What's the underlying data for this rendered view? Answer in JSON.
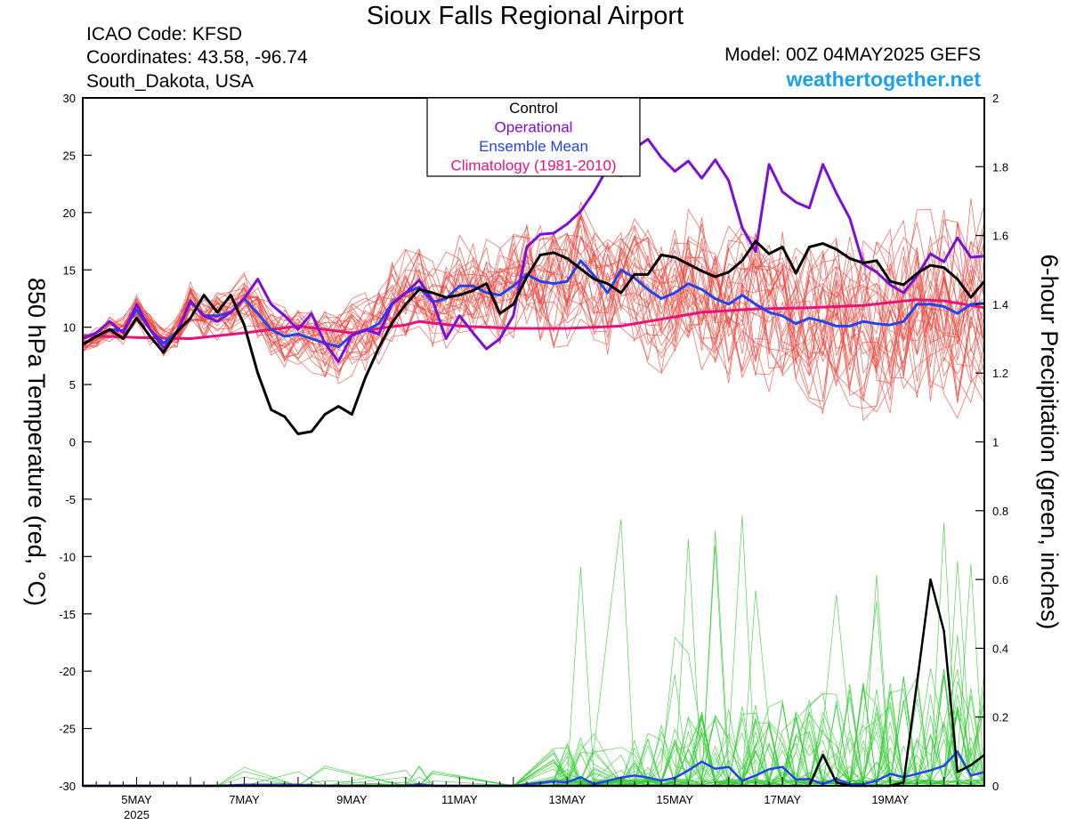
{
  "header": {
    "title": "Sioux Falls Regional Airport",
    "icao": "ICAO Code: KFSD",
    "coords": "Coordinates: 43.58, -96.74",
    "region": "South_Dakota, USA",
    "model": "Model: 00Z 04MAY2025 GEFS",
    "site": "weathertogether.net"
  },
  "chart_data": {
    "type": "line",
    "x_unit": "forecast hours from 00Z 04MAY2025 (6-hourly)",
    "x_tick_labels": [
      "5MAY",
      "7MAY",
      "9MAY",
      "11MAY",
      "13MAY",
      "15MAY",
      "17MAY",
      "19MAY"
    ],
    "x_year_label": "2025",
    "y_left": {
      "label": "850 hPa Temperature (red, °C)",
      "range": [
        -30,
        30
      ],
      "ticks": [
        "30",
        "25",
        "20",
        "15",
        "10",
        "5",
        "0",
        "-5",
        "-10",
        "-15",
        "-20",
        "-25",
        "-30"
      ]
    },
    "y_right": {
      "label": "6-hour Precipitation (green, inches)",
      "range": [
        0,
        2
      ],
      "ticks": [
        "2",
        "1.8",
        "1.6",
        "1.4",
        "1.2",
        "1",
        "0.8",
        "0.6",
        "0.4",
        "0.2",
        "0"
      ]
    },
    "legend": [
      {
        "label": "Control",
        "color": "#000000"
      },
      {
        "label": "Operational",
        "color": "#7a10d8"
      },
      {
        "label": "Ensemble Mean",
        "color": "#2244ee"
      },
      {
        "label": "Climatology (1981-2010)",
        "color": "#e8137a"
      }
    ],
    "legend_position": "top-center",
    "colors": {
      "members_temp": "#f0443a",
      "members_precip": "#33cc33",
      "axes": "#000000"
    },
    "series": [
      {
        "name": "Control",
        "axis": "left",
        "points": [
          [
            0,
            8.5
          ],
          [
            6,
            9.2
          ],
          [
            12,
            9.8
          ],
          [
            18,
            9.0
          ],
          [
            24,
            10.8
          ],
          [
            30,
            9.2
          ],
          [
            36,
            7.8
          ],
          [
            42,
            9.6
          ],
          [
            48,
            10.8
          ],
          [
            54,
            12.8
          ],
          [
            60,
            11.3
          ],
          [
            66,
            12.8
          ],
          [
            72,
            10.2
          ],
          [
            78,
            6.0
          ],
          [
            84,
            2.8
          ],
          [
            90,
            2.2
          ],
          [
            96,
            0.7
          ],
          [
            102,
            0.9
          ],
          [
            108,
            2.4
          ],
          [
            114,
            3.1
          ],
          [
            120,
            2.4
          ],
          [
            126,
            5.6
          ],
          [
            132,
            8.2
          ],
          [
            138,
            10.4
          ],
          [
            144,
            12.0
          ],
          [
            150,
            13.3
          ],
          [
            156,
            13.0
          ],
          [
            162,
            12.6
          ],
          [
            168,
            12.8
          ],
          [
            174,
            13.2
          ],
          [
            180,
            13.8
          ],
          [
            186,
            11.2
          ],
          [
            192,
            12.0
          ],
          [
            198,
            14.4
          ],
          [
            204,
            16.3
          ],
          [
            210,
            16.5
          ],
          [
            216,
            16.0
          ],
          [
            222,
            15.1
          ],
          [
            228,
            14.2
          ],
          [
            234,
            13.8
          ],
          [
            240,
            13.0
          ],
          [
            246,
            14.6
          ],
          [
            252,
            14.6
          ],
          [
            258,
            16.3
          ],
          [
            264,
            16.1
          ],
          [
            270,
            15.5
          ],
          [
            276,
            14.9
          ],
          [
            282,
            14.4
          ],
          [
            288,
            14.8
          ],
          [
            294,
            15.8
          ],
          [
            300,
            17.5
          ],
          [
            306,
            16.4
          ],
          [
            312,
            17.0
          ],
          [
            318,
            14.7
          ],
          [
            324,
            17.0
          ],
          [
            330,
            17.3
          ],
          [
            336,
            16.8
          ],
          [
            342,
            16.0
          ],
          [
            348,
            15.6
          ],
          [
            354,
            15.8
          ],
          [
            360,
            14.0
          ],
          [
            366,
            13.7
          ],
          [
            372,
            14.7
          ],
          [
            378,
            15.4
          ],
          [
            384,
            15.2
          ],
          [
            390,
            14.2
          ],
          [
            396,
            12.6
          ],
          [
            402,
            14.0
          ]
        ]
      },
      {
        "name": "Operational",
        "axis": "left",
        "points": [
          [
            0,
            9.0
          ],
          [
            6,
            9.5
          ],
          [
            12,
            10.5
          ],
          [
            18,
            9.5
          ],
          [
            24,
            12.0
          ],
          [
            30,
            9.8
          ],
          [
            36,
            8.2
          ],
          [
            42,
            9.5
          ],
          [
            48,
            12.3
          ],
          [
            54,
            11.0
          ],
          [
            60,
            10.5
          ],
          [
            66,
            11.3
          ],
          [
            72,
            12.5
          ],
          [
            78,
            14.2
          ],
          [
            84,
            12.0
          ],
          [
            90,
            11.0
          ],
          [
            96,
            9.8
          ],
          [
            102,
            11.2
          ],
          [
            108,
            8.6
          ],
          [
            114,
            7.0
          ],
          [
            120,
            9.3
          ],
          [
            126,
            9.8
          ],
          [
            132,
            9.4
          ],
          [
            138,
            12.0
          ],
          [
            144,
            13.0
          ],
          [
            150,
            14.1
          ],
          [
            156,
            12.3
          ],
          [
            162,
            9.0
          ],
          [
            168,
            11.0
          ],
          [
            174,
            9.5
          ],
          [
            180,
            8.1
          ],
          [
            186,
            9.0
          ],
          [
            192,
            11.0
          ],
          [
            198,
            17.0
          ],
          [
            204,
            18.1
          ],
          [
            210,
            18.2
          ],
          [
            216,
            19.0
          ],
          [
            222,
            20.1
          ],
          [
            228,
            21.8
          ],
          [
            234,
            23.9
          ],
          [
            240,
            23.2
          ],
          [
            246,
            25.6
          ],
          [
            252,
            26.4
          ],
          [
            258,
            24.8
          ],
          [
            264,
            23.6
          ],
          [
            270,
            24.5
          ],
          [
            276,
            23.0
          ],
          [
            282,
            24.6
          ],
          [
            288,
            22.8
          ],
          [
            294,
            18.7
          ],
          [
            300,
            16.6
          ],
          [
            306,
            24.2
          ],
          [
            312,
            21.8
          ],
          [
            318,
            20.9
          ],
          [
            324,
            20.4
          ],
          [
            330,
            24.2
          ],
          [
            336,
            21.7
          ],
          [
            342,
            19.5
          ],
          [
            348,
            15.5
          ],
          [
            354,
            14.8
          ],
          [
            360,
            13.7
          ],
          [
            366,
            13.0
          ],
          [
            372,
            14.5
          ],
          [
            378,
            16.4
          ],
          [
            384,
            15.7
          ],
          [
            390,
            17.8
          ],
          [
            396,
            16.1
          ],
          [
            402,
            16.2
          ]
        ]
      },
      {
        "name": "Ensemble Mean",
        "axis": "left",
        "points": [
          [
            0,
            8.5
          ],
          [
            6,
            9.2
          ],
          [
            12,
            9.8
          ],
          [
            18,
            9.7
          ],
          [
            24,
            11.5
          ],
          [
            30,
            9.8
          ],
          [
            36,
            8.6
          ],
          [
            42,
            9.6
          ],
          [
            48,
            12.2
          ],
          [
            54,
            11.0
          ],
          [
            60,
            11.0
          ],
          [
            66,
            11.3
          ],
          [
            72,
            12.5
          ],
          [
            78,
            11.2
          ],
          [
            84,
            9.8
          ],
          [
            90,
            9.2
          ],
          [
            96,
            9.4
          ],
          [
            102,
            9.0
          ],
          [
            108,
            8.6
          ],
          [
            114,
            8.3
          ],
          [
            120,
            9.3
          ],
          [
            126,
            9.7
          ],
          [
            132,
            10.3
          ],
          [
            138,
            12.1
          ],
          [
            144,
            13.0
          ],
          [
            150,
            13.5
          ],
          [
            156,
            12.2
          ],
          [
            162,
            12.5
          ],
          [
            168,
            13.6
          ],
          [
            174,
            13.6
          ],
          [
            180,
            13.0
          ],
          [
            186,
            12.8
          ],
          [
            192,
            13.6
          ],
          [
            198,
            14.6
          ],
          [
            204,
            14.0
          ],
          [
            210,
            13.8
          ],
          [
            216,
            14.0
          ],
          [
            222,
            15.8
          ],
          [
            228,
            14.5
          ],
          [
            234,
            13.0
          ],
          [
            240,
            15.0
          ],
          [
            246,
            14.3
          ],
          [
            252,
            13.3
          ],
          [
            258,
            12.5
          ],
          [
            264,
            13.0
          ],
          [
            270,
            13.8
          ],
          [
            276,
            13.3
          ],
          [
            282,
            12.5
          ],
          [
            288,
            12.0
          ],
          [
            294,
            12.8
          ],
          [
            300,
            12.0
          ],
          [
            306,
            11.3
          ],
          [
            312,
            11.0
          ],
          [
            318,
            10.3
          ],
          [
            324,
            10.8
          ],
          [
            330,
            10.5
          ],
          [
            336,
            10.1
          ],
          [
            342,
            10.1
          ],
          [
            348,
            10.5
          ],
          [
            354,
            10.3
          ],
          [
            360,
            10.2
          ],
          [
            366,
            10.5
          ],
          [
            372,
            12.0
          ],
          [
            378,
            12.0
          ],
          [
            384,
            11.8
          ],
          [
            390,
            11.2
          ],
          [
            396,
            12.0
          ],
          [
            402,
            12.1
          ]
        ]
      },
      {
        "name": "Climatology (1981-2010)",
        "axis": "left",
        "points": [
          [
            0,
            9.3
          ],
          [
            24,
            9.1
          ],
          [
            48,
            9.0
          ],
          [
            72,
            9.5
          ],
          [
            96,
            10.1
          ],
          [
            120,
            9.5
          ],
          [
            132,
            9.9
          ],
          [
            144,
            10.2
          ],
          [
            150,
            10.5
          ],
          [
            168,
            10.1
          ],
          [
            192,
            9.9
          ],
          [
            216,
            9.9
          ],
          [
            240,
            10.1
          ],
          [
            252,
            10.5
          ],
          [
            276,
            11.3
          ],
          [
            300,
            11.6
          ],
          [
            324,
            11.7
          ],
          [
            348,
            11.9
          ],
          [
            372,
            12.4
          ],
          [
            384,
            12.3
          ],
          [
            402,
            11.7
          ]
        ]
      },
      {
        "name": "Control precipitation",
        "axis": "right",
        "points": [
          [
            0,
            0
          ],
          [
            312,
            0
          ],
          [
            324,
            0
          ],
          [
            330,
            0.09
          ],
          [
            336,
            0.01
          ],
          [
            342,
            0
          ],
          [
            360,
            0
          ],
          [
            366,
            0.01
          ],
          [
            372,
            0.3
          ],
          [
            378,
            0.6
          ],
          [
            384,
            0.45
          ],
          [
            390,
            0.04
          ],
          [
            396,
            0.06
          ],
          [
            402,
            0.09
          ]
        ]
      },
      {
        "name": "Ensemble Mean precipitation",
        "axis": "right",
        "points": [
          [
            0,
            0
          ],
          [
            60,
            0
          ],
          [
            72,
            0.003
          ],
          [
            96,
            0.003
          ],
          [
            108,
            0
          ],
          [
            144,
            0
          ],
          [
            150,
            0.005
          ],
          [
            156,
            0
          ],
          [
            192,
            0
          ],
          [
            210,
            0.013
          ],
          [
            216,
            0.01
          ],
          [
            222,
            0.025
          ],
          [
            228,
            0.005
          ],
          [
            240,
            0.024
          ],
          [
            246,
            0.03
          ],
          [
            252,
            0.024
          ],
          [
            258,
            0.015
          ],
          [
            264,
            0.023
          ],
          [
            270,
            0.045
          ],
          [
            276,
            0.07
          ],
          [
            282,
            0.05
          ],
          [
            288,
            0.055
          ],
          [
            294,
            0.015
          ],
          [
            300,
            0.03
          ],
          [
            306,
            0.048
          ],
          [
            312,
            0.055
          ],
          [
            318,
            0.018
          ],
          [
            324,
            0.02
          ],
          [
            330,
            0.005
          ],
          [
            336,
            0.02
          ],
          [
            342,
            0.005
          ],
          [
            348,
            0.005
          ],
          [
            354,
            0.015
          ],
          [
            360,
            0.035
          ],
          [
            366,
            0.025
          ],
          [
            372,
            0.035
          ],
          [
            378,
            0.045
          ],
          [
            384,
            0.058
          ],
          [
            390,
            0.1
          ],
          [
            396,
            0.03
          ],
          [
            402,
            0.04
          ]
        ]
      }
    ]
  }
}
